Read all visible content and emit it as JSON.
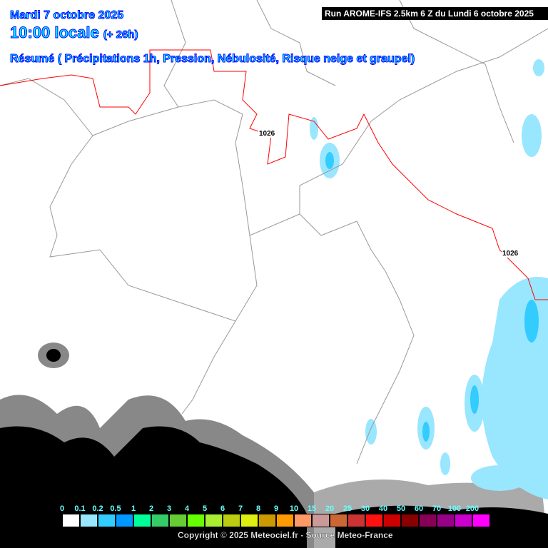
{
  "header": {
    "date": "Mardi 7 octobre 2025",
    "time": "10:00 locale",
    "lead": "(+ 26h)",
    "summary": "Résumé ( Précipitations 1h, Pression, Nébulosité, Risque neige et graupel)",
    "run": "Run AROME-IFS 2.5km 6 Z du Lundi 6 octobre 2025"
  },
  "pressure_labels": [
    "1026",
    "1026"
  ],
  "legend": {
    "labels": [
      "0",
      "0.1",
      "0.2",
      "0.5",
      "1",
      "2",
      "3",
      "4",
      "5",
      "6",
      "7",
      "8",
      "9",
      "10",
      "15",
      "20",
      "25",
      "30",
      "40",
      "50",
      "60",
      "70",
      "100",
      "200"
    ],
    "colors": [
      "#ffffff",
      "#99e6ff",
      "#33ccff",
      "#0099ff",
      "#00ff99",
      "#33cc66",
      "#66cc33",
      "#66ff00",
      "#aaee33",
      "#bbcc11",
      "#ddee11",
      "#cc9900",
      "#ff9900",
      "#ff9966",
      "#cc9999",
      "#cc6633",
      "#cc3333",
      "#ff1111",
      "#cc0000",
      "#880000",
      "#880055",
      "#990088",
      "#cc00cc",
      "#ff00ff"
    ]
  },
  "copyright": "Copyright © 2025 Meteociel.fr - Source Meteo-France"
}
